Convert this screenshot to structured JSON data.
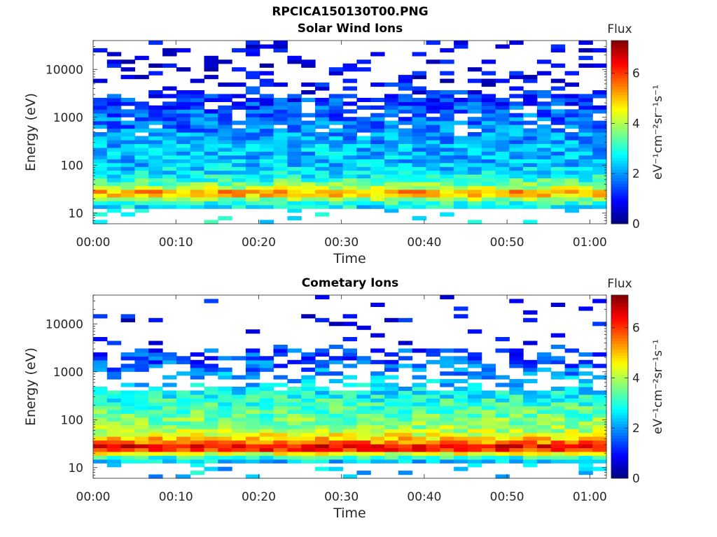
{
  "figure": {
    "title": "RPCICA150130T00.PNG"
  },
  "chart_data": [
    {
      "type": "heatmap",
      "title": "Solar Wind Ions",
      "xlabel": "Time",
      "ylabel": "Energy (eV)",
      "yscale": "log",
      "xlim": [
        "00:00",
        "01:02"
      ],
      "ylim": [
        6,
        40000
      ],
      "x_ticks": [
        "00:00",
        "00:10",
        "00:20",
        "00:30",
        "00:40",
        "00:50",
        "01:00"
      ],
      "y_ticks": [
        "10",
        "100",
        "1000",
        "10000"
      ],
      "colorbar": {
        "label_title": "Flux",
        "unit": "eV⁻¹cm⁻²sr⁻¹s⁻¹",
        "range": [
          0,
          7.3
        ],
        "ticks": [
          "0",
          "2",
          "4",
          "6"
        ]
      },
      "colormap": "jet",
      "grid": false,
      "legend": "none",
      "profile_log_flux": [
        {
          "energy": 15,
          "value": 2.6
        },
        {
          "energy": 19,
          "value": 3.6
        },
        {
          "energy": 22,
          "value": 4.4
        },
        {
          "energy": 26,
          "value": 5.6
        },
        {
          "energy": 30,
          "value": 4.8
        },
        {
          "energy": 35,
          "value": 4.0
        },
        {
          "energy": 45,
          "value": 3.3
        },
        {
          "energy": 60,
          "value": 2.8
        },
        {
          "energy": 100,
          "value": 2.3
        },
        {
          "energy": 250,
          "value": 2.2
        },
        {
          "energy": 600,
          "value": 1.8
        },
        {
          "energy": 1500,
          "value": 1.5
        },
        {
          "energy": 10000,
          "value": 0.6
        }
      ]
    },
    {
      "type": "heatmap",
      "title": "Cometary Ions",
      "xlabel": "Time",
      "ylabel": "Energy (eV)",
      "yscale": "log",
      "xlim": [
        "00:00",
        "01:02"
      ],
      "ylim": [
        6,
        40000
      ],
      "x_ticks": [
        "00:00",
        "00:10",
        "00:20",
        "00:30",
        "00:40",
        "00:50",
        "01:00"
      ],
      "y_ticks": [
        "10",
        "100",
        "1000",
        "10000"
      ],
      "colorbar": {
        "label_title": "Flux",
        "unit": "eV⁻¹cm⁻²sr⁻¹s⁻¹",
        "range": [
          0,
          7.3
        ],
        "ticks": [
          "0",
          "2",
          "4",
          "6"
        ]
      },
      "colormap": "jet",
      "grid": false,
      "legend": "none",
      "profile_log_flux": [
        {
          "energy": 15,
          "value": 2.4
        },
        {
          "energy": 19,
          "value": 4.0
        },
        {
          "energy": 22,
          "value": 5.6
        },
        {
          "energy": 26,
          "value": 6.6
        },
        {
          "energy": 30,
          "value": 6.2
        },
        {
          "energy": 35,
          "value": 5.4
        },
        {
          "energy": 45,
          "value": 4.6
        },
        {
          "energy": 60,
          "value": 4.0
        },
        {
          "energy": 100,
          "value": 3.6
        },
        {
          "energy": 250,
          "value": 3.0
        },
        {
          "energy": 600,
          "value": 2.3
        },
        {
          "energy": 1500,
          "value": 1.6
        },
        {
          "energy": 10000,
          "value": 0.8
        }
      ]
    }
  ]
}
